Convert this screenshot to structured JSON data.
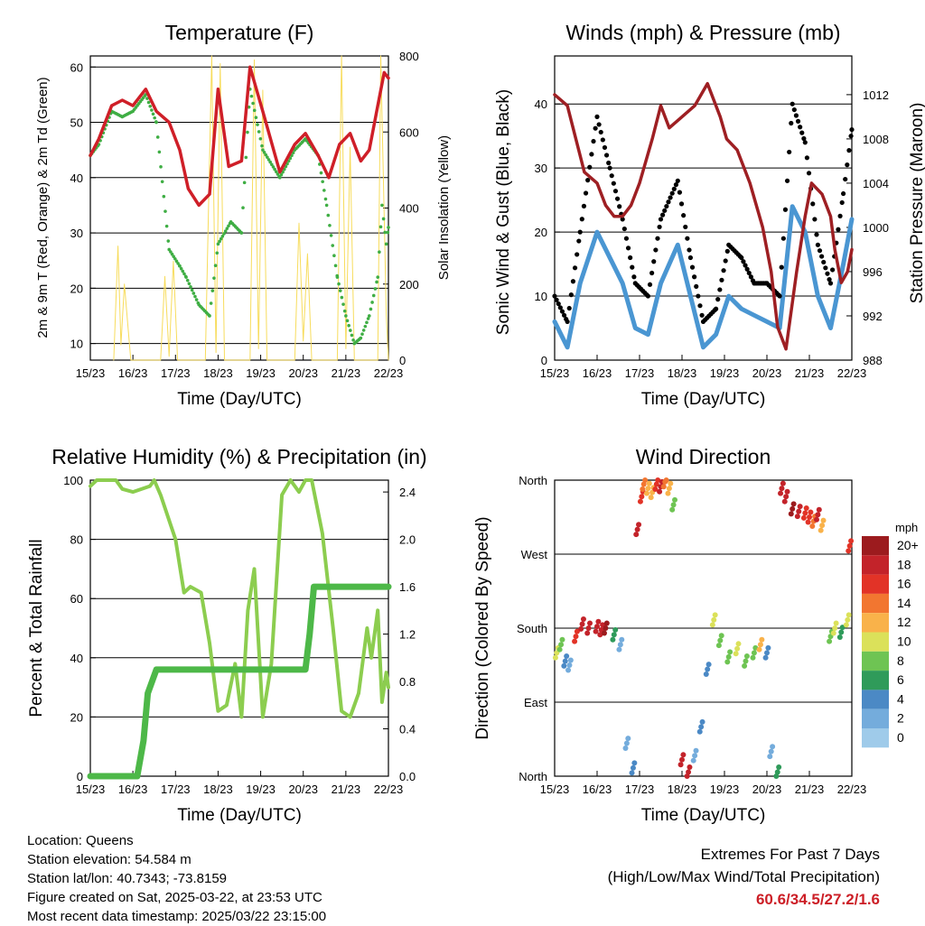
{
  "colors": {
    "temperature": "#cf1f28",
    "dewpoint": "#3fae44",
    "solar": "#f7dc5c",
    "gust": "#000000",
    "wind": "#4a96d2",
    "pressure": "#9e1f23",
    "rh": "#8ccd4f",
    "precip": "#4db848",
    "highlight": "#cc1e26",
    "speed_scale": [
      "#cde9f7",
      "#9fcbea",
      "#74acdc",
      "#4b89c5",
      "#2f9b5a",
      "#6ec453",
      "#dbe15a",
      "#f9b24a",
      "#f27630",
      "#e23327",
      "#c3232a",
      "#9c1b1e"
    ]
  },
  "time_ticks": [
    "15/23",
    "16/23",
    "17/23",
    "18/23",
    "19/23",
    "20/23",
    "21/23",
    "22/23"
  ],
  "footer": {
    "location": "Location: Queens",
    "elevation": "Station elevation: 54.584 m",
    "latlon": "Station lat/lon: 40.7343; -73.8159",
    "created": "Figure created on Sat, 2025-03-22, at 23:53 UTC",
    "recent": "Most recent data timestamp: 2025/03/22 23:15:00",
    "extremes_title": "Extremes For Past 7 Days",
    "extremes_sub": "(High/Low/Max Wind/Total Precipitation)",
    "extremes_values": "60.6/34.5/27.2/1.6"
  },
  "chart_data": [
    {
      "type": "line",
      "title": "Temperature (F)",
      "xlabel": "Time (Day/UTC)",
      "ylabel": "2m & 9m T (Red, Orange) & 2m Td (Green)",
      "y2label": "Solar Insolation (Yellow)",
      "ylim": [
        7,
        62
      ],
      "y2lim": [
        0,
        800
      ],
      "yticks": [
        10,
        20,
        30,
        40,
        50,
        60
      ],
      "y2ticks": [
        0,
        200,
        400,
        600,
        800
      ],
      "x_days": [
        0,
        1,
        2,
        3,
        4,
        5,
        6,
        7
      ],
      "series": [
        {
          "name": "temperature",
          "x": [
            0,
            0.2,
            0.5,
            0.75,
            1,
            1.3,
            1.55,
            1.85,
            2.1,
            2.3,
            2.55,
            2.8,
            3.0,
            3.25,
            3.55,
            3.75,
            4.05,
            4.45,
            4.8,
            5.05,
            5.35,
            5.6,
            5.85,
            6.1,
            6.35,
            6.55,
            6.75,
            6.9,
            7
          ],
          "y": [
            44,
            47,
            53,
            54,
            53,
            56,
            52,
            50,
            45,
            38,
            35,
            37,
            56,
            42,
            43,
            60,
            52,
            41,
            46,
            48,
            44,
            40,
            46,
            48,
            43,
            45,
            53,
            59,
            58
          ]
        },
        {
          "name": "dewpoint",
          "x": [
            0,
            0.2,
            0.5,
            0.75,
            1,
            1.3,
            1.55,
            1.85,
            2.1,
            2.25,
            2.55,
            2.8,
            3.0,
            3.3,
            3.55,
            3.75,
            4.05,
            4.45,
            4.8,
            5.05,
            5.35,
            5.55,
            5.8,
            6.0,
            6.2,
            6.35,
            6.55,
            6.75,
            6.85,
            6.95,
            7
          ],
          "y": [
            44,
            46,
            52,
            51,
            52,
            55,
            50,
            27,
            24,
            22,
            17,
            15,
            28,
            32,
            30,
            56,
            45,
            40,
            45,
            47,
            44,
            35,
            22,
            15,
            10,
            11,
            15,
            22,
            35,
            28,
            31
          ]
        },
        {
          "name": "solar",
          "x": [
            0.55,
            0.65,
            0.72,
            0.8,
            0.95,
            1.65,
            1.75,
            1.85,
            1.95,
            2.05,
            2.7,
            2.85,
            2.95,
            3.05,
            3.15,
            3.75,
            3.85,
            3.95,
            4.05,
            4.15,
            4.8,
            4.9,
            5.0,
            5.1,
            5.2,
            5.8,
            5.9,
            6.0,
            6.1,
            6.2,
            6.75,
            6.82,
            6.9,
            6.95,
            7.0
          ],
          "y": [
            0,
            300,
            40,
            200,
            0,
            0,
            220,
            10,
            260,
            0,
            0,
            800,
            20,
            780,
            0,
            0,
            790,
            30,
            710,
            0,
            0,
            360,
            50,
            280,
            0,
            0,
            800,
            30,
            560,
            0,
            0,
            800,
            380,
            120,
            0
          ]
        }
      ]
    },
    {
      "type": "line",
      "title": "Winds (mph) & Pressure (mb)",
      "xlabel": "Time (Day/UTC)",
      "ylabel": "Sonic Wind & Gust (Blue, Black)",
      "y2label": "Station Pressure (Maroon)",
      "ylim": [
        0,
        47.5
      ],
      "y2lim": [
        988,
        1015.5
      ],
      "yticks": [
        0,
        10,
        20,
        30,
        40
      ],
      "y2ticks": [
        988,
        992,
        996,
        1000,
        1004,
        1008,
        1012
      ],
      "series": [
        {
          "name": "pressure",
          "x": [
            0,
            0.3,
            0.5,
            0.7,
            1.0,
            1.2,
            1.4,
            1.6,
            1.8,
            2.0,
            2.3,
            2.5,
            2.7,
            3.0,
            3.3,
            3.6,
            3.9,
            4.05,
            4.3,
            4.6,
            4.9,
            5.1,
            5.25,
            5.45,
            5.7,
            5.9,
            6.05,
            6.3,
            6.5,
            6.6,
            6.75,
            6.9,
            7.0
          ],
          "y": [
            1012,
            1011,
            1008,
            1005,
            1004,
            1002,
            1001,
            1001,
            1002,
            1004,
            1008,
            1011,
            1009,
            1010,
            1011,
            1013,
            1010,
            1008,
            1007,
            1004,
            1000,
            996,
            991,
            989,
            996,
            1001,
            1004,
            1003,
            1001,
            998,
            995,
            996,
            998
          ]
        },
        {
          "name": "gust",
          "x": [
            0,
            0.3,
            0.6,
            1.0,
            1.3,
            1.6,
            1.9,
            2.2,
            2.5,
            2.9,
            3.2,
            3.5,
            3.8,
            4.1,
            4.4,
            4.7,
            5.0,
            5.3,
            5.6,
            5.9,
            6.2,
            6.5,
            6.8,
            7.0
          ],
          "y": [
            10,
            6,
            20,
            38,
            30,
            22,
            12,
            10,
            22,
            28,
            16,
            6,
            8,
            18,
            16,
            12,
            12,
            10,
            40,
            34,
            18,
            12,
            26,
            36
          ]
        },
        {
          "name": "wind",
          "x": [
            0,
            0.3,
            0.6,
            1.0,
            1.3,
            1.6,
            1.9,
            2.2,
            2.5,
            2.9,
            3.2,
            3.5,
            3.8,
            4.1,
            4.4,
            4.7,
            5.0,
            5.3,
            5.6,
            5.9,
            6.2,
            6.5,
            6.8,
            7.0
          ],
          "y": [
            6,
            2,
            12,
            20,
            16,
            12,
            5,
            4,
            12,
            18,
            10,
            2,
            4,
            10,
            8,
            7,
            6,
            5,
            24,
            20,
            10,
            5,
            15,
            22
          ]
        }
      ]
    },
    {
      "type": "line",
      "title": "Relative Humidity (%) & Precipitation (in)",
      "xlabel": "Time (Day/UTC)",
      "ylabel": "Percent & Total Rainfall",
      "ylim": [
        0,
        100
      ],
      "y2lim": [
        0,
        2.5
      ],
      "yticks": [
        0,
        20,
        40,
        60,
        80,
        100
      ],
      "y2ticks": [
        "0.0",
        "0.4",
        "0.8",
        "1.2",
        "1.6",
        "2.0",
        "2.4"
      ],
      "series": [
        {
          "name": "rh",
          "x": [
            0,
            0.15,
            0.35,
            0.6,
            0.75,
            1.0,
            1.4,
            1.5,
            1.65,
            2.0,
            2.2,
            2.35,
            2.6,
            2.8,
            3.0,
            3.2,
            3.4,
            3.55,
            3.7,
            3.85,
            4.05,
            4.25,
            4.5,
            4.7,
            4.9,
            5.05,
            5.2,
            5.45,
            5.7,
            5.9,
            6.1,
            6.3,
            6.5,
            6.6,
            6.75,
            6.85,
            6.95,
            7.0
          ],
          "y": [
            98,
            100,
            100,
            100,
            97,
            96,
            98,
            100,
            95,
            80,
            62,
            64,
            62,
            45,
            22,
            24,
            38,
            20,
            56,
            70,
            20,
            38,
            95,
            100,
            96,
            100,
            100,
            82,
            50,
            22,
            20,
            28,
            50,
            40,
            56,
            25,
            35,
            30
          ]
        },
        {
          "name": "precip",
          "x": [
            0,
            1.1,
            1.25,
            1.35,
            1.55,
            2.0,
            3.0,
            4.0,
            5.05,
            5.15,
            5.25,
            5.4,
            6.0,
            7.0
          ],
          "y": [
            0,
            0,
            0.3,
            0.7,
            0.9,
            0.9,
            0.9,
            0.9,
            0.9,
            1.2,
            1.6,
            1.6,
            1.6,
            1.6
          ]
        }
      ]
    },
    {
      "type": "scatter",
      "title": "Wind Direction",
      "xlabel": "Time (Day/UTC)",
      "ylabel": "Direction (Colored By Speed)",
      "ylim": [
        0,
        360
      ],
      "ytick_labels": [
        "North",
        "East",
        "South",
        "West",
        "North"
      ],
      "legend": {
        "title": "mph",
        "labels": [
          "20+",
          "18",
          "16",
          "14",
          "12",
          "10",
          "8",
          "6",
          "4",
          "2",
          "0"
        ]
      },
      "series": [
        {
          "name": "direction",
          "x": [
            0.05,
            0.15,
            0.25,
            0.35,
            0.5,
            0.65,
            0.8,
            1.0,
            1.1,
            1.2,
            1.4,
            1.55,
            1.7,
            1.85,
            1.95,
            2.05,
            2.1,
            2.2,
            2.3,
            2.4,
            2.5,
            2.6,
            2.7,
            2.8,
            3.0,
            3.15,
            3.3,
            3.45,
            3.6,
            3.75,
            3.9,
            4.1,
            4.3,
            4.5,
            4.7,
            4.85,
            5.0,
            5.1,
            5.25,
            5.35,
            5.45,
            5.6,
            5.75,
            5.9,
            6.0,
            6.1,
            6.2,
            6.3,
            6.5,
            6.6,
            6.75,
            6.9,
            6.95
          ],
          "y": [
            150,
            160,
            140,
            135,
            170,
            185,
            180,
            182,
            178,
            180,
            172,
            160,
            40,
            10,
            300,
            340,
            355,
            350,
            345,
            355,
            352,
            358,
            350,
            330,
            20,
            5,
            25,
            60,
            130,
            190,
            165,
            145,
            155,
            140,
            150,
            160,
            150,
            30,
            5,
            350,
            340,
            325,
            322,
            320,
            315,
            310,
            318,
            305,
            170,
            180,
            175,
            190,
            280
          ],
          "speed": [
            12,
            10,
            6,
            4,
            17,
            19,
            20,
            20,
            19,
            21,
            8,
            3,
            4,
            6,
            20,
            18,
            16,
            14,
            13,
            18,
            20,
            16,
            14,
            9,
            20,
            19,
            3,
            5,
            6,
            12,
            9,
            9,
            11,
            10,
            9,
            14,
            6,
            4,
            7,
            19,
            20,
            21,
            20,
            18,
            17,
            16,
            20,
            13,
            9,
            11,
            7,
            12,
            17
          ]
        }
      ]
    }
  ]
}
